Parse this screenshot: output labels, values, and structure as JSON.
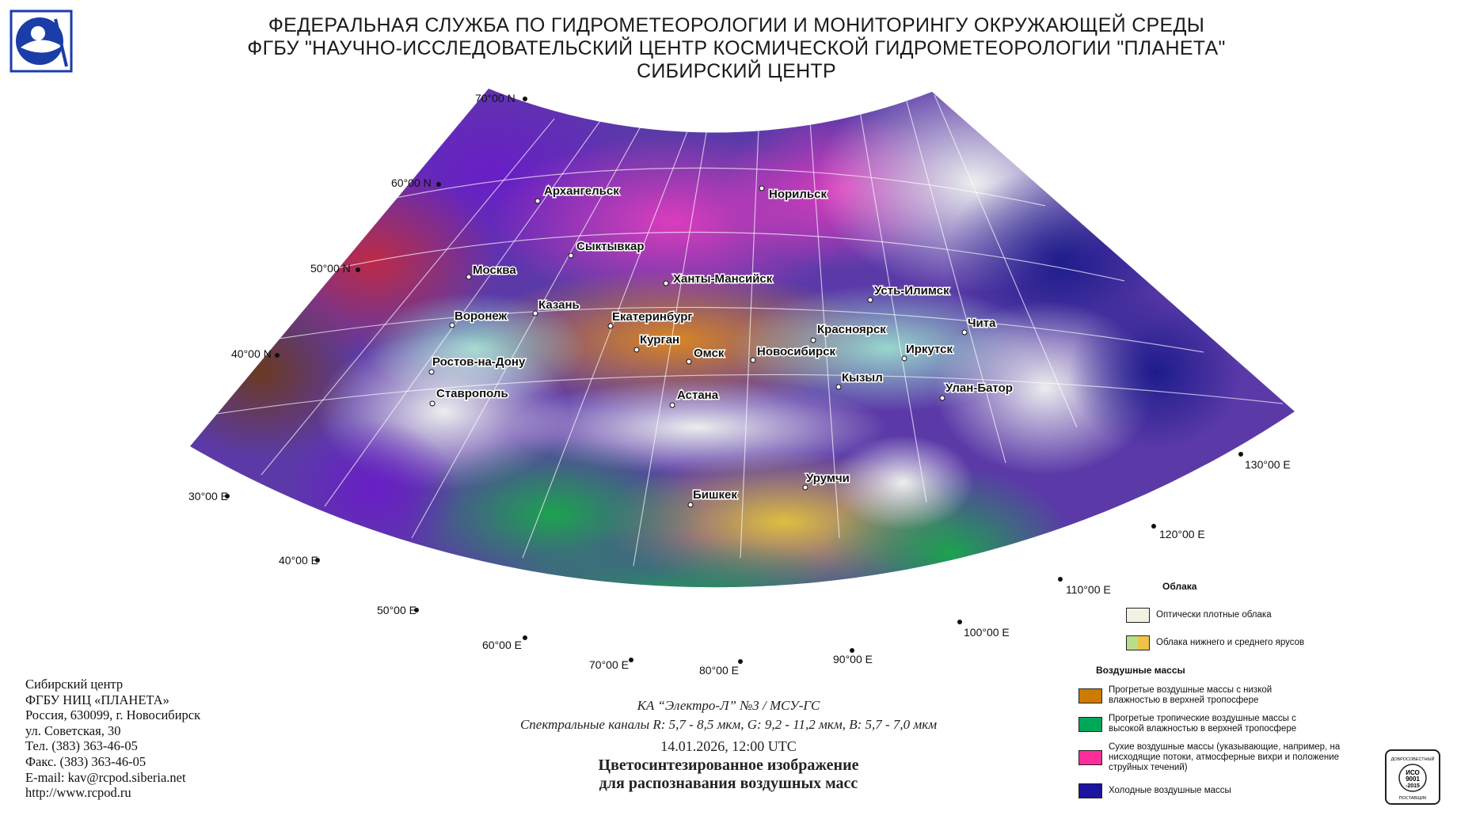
{
  "header": {
    "line1": "ФЕДЕРАЛЬНАЯ СЛУЖБА ПО ГИДРОМЕТЕОРОЛОГИИ И МОНИТОРИНГУ ОКРУЖАЮЩЕЙ СРЕДЫ",
    "line2": "ФГБУ \"НАУЧНО-ИССЛЕДОВАТЕЛЬСКИЙ ЦЕНТР КОСМИЧЕСКОЙ ГИДРОМЕТЕОРОЛОГИИ \"ПЛАНЕТА\"",
    "line3": "СИБИРСКИЙ ЦЕНТР"
  },
  "map": {
    "lat_labels": [
      "70°00 N",
      "60°00 N",
      "50°00 N",
      "40°00 N"
    ],
    "lon_labels": [
      "30°00 E",
      "40°00 E",
      "50°00 E",
      "60°00 E",
      "70°00 E",
      "80°00 E",
      "90°00 E",
      "100°00 E",
      "110°00 E",
      "120°00 E",
      "130°00 E"
    ],
    "cities": [
      {
        "name": "Архангельск"
      },
      {
        "name": "Норильск"
      },
      {
        "name": "Сыктывкар"
      },
      {
        "name": "Москва"
      },
      {
        "name": "Ханты-Мансийск"
      },
      {
        "name": "Казань"
      },
      {
        "name": "Усть-Илимск"
      },
      {
        "name": "Воронеж"
      },
      {
        "name": "Екатеринбург"
      },
      {
        "name": "Красноярск"
      },
      {
        "name": "Чита"
      },
      {
        "name": "Курган"
      },
      {
        "name": "Омск"
      },
      {
        "name": "Новосибирск"
      },
      {
        "name": "Иркутск"
      },
      {
        "name": "Ростов-на-Дону"
      },
      {
        "name": "Кызыл"
      },
      {
        "name": "Улан-Батор"
      },
      {
        "name": "Ставрополь"
      },
      {
        "name": "Астана"
      },
      {
        "name": "Урумчи"
      },
      {
        "name": "Бишкек"
      }
    ]
  },
  "contacts": {
    "org": "Сибирский центр",
    "org2": "ФГБУ НИЦ «ПЛАНЕТА»",
    "address1": "Россия, 630099, г. Новосибирск",
    "address2": "ул. Советская, 30",
    "phone": "Тел. (383) 363-46-05",
    "fax": "Факс. (383) 363-46-05",
    "email": "E-mail: kav@rcpod.siberia.net",
    "web": "http://www.rcpod.ru"
  },
  "caption": {
    "satellite": "КА “Электро-Л” №3 / МСУ-ГС",
    "channels": "Спектральные каналы R: 5,7 - 8,5 мкм, G: 9,2 - 11,2 мкм, B: 5,7 - 7,0 мкм",
    "datetime": "14.01.2026, 12:00 UTC",
    "title1": "Цветосинтезированное изображение",
    "title2": "для распознавания воздушных масс"
  },
  "legend": {
    "clouds_heading": "Облака",
    "clouds_items": [
      {
        "label": "Оптически плотные облака",
        "color": "#f2f1e4"
      },
      {
        "label": "Облака нижнего и среднего ярусов",
        "colors": [
          "#b9de8a",
          "#f0c24a"
        ]
      }
    ],
    "air_heading": "Воздушные массы",
    "air_items": [
      {
        "label": "Прогретые воздушные массы с низкой влажностью в верхней тропосфере",
        "color": "#cc7a00"
      },
      {
        "label": "Прогретые тропичеcкие воздушные массы с высокой влажностью в верхней тропосфере",
        "color": "#00a858"
      },
      {
        "label": "Сухие воздушные массы (указывающие, например, на нисходящие потоки, атмосферные вихри и положение струйных течений)",
        "color": "#ff2d9b"
      },
      {
        "label": "Холодные воздушные массы",
        "color": "#1a14a0"
      }
    ]
  },
  "quality_mark": {
    "text1": "ДОБРОСОВЕСТНЫЙ",
    "text2": "ИСО",
    "text3": "9001",
    "text4": "-2015",
    "text5": "ПОСТАВЩИК"
  }
}
